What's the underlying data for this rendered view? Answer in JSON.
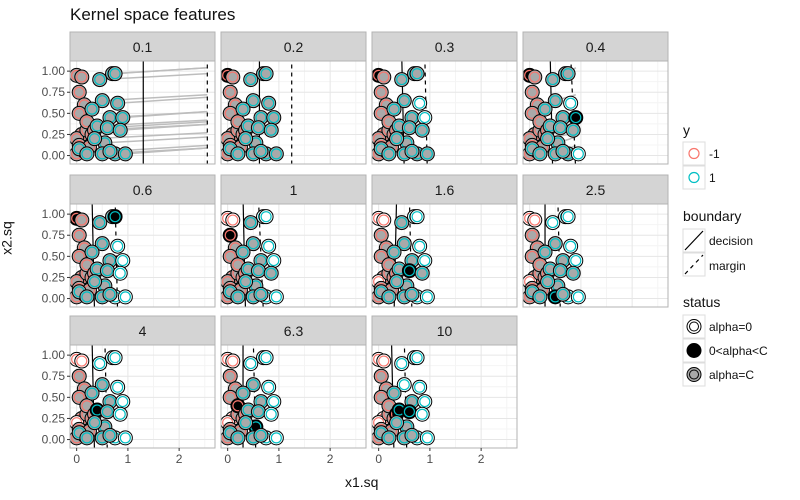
{
  "chart_data": {
    "type": "scatter",
    "title": "Kernel space features",
    "xlabel": "x1.sq",
    "ylabel": "x2.sq",
    "xlim": [
      -0.13,
      2.7
    ],
    "ylim": [
      -0.1,
      1.12
    ],
    "xticks": [
      "0",
      "1",
      "2"
    ],
    "xtick_values": [
      0,
      1,
      2
    ],
    "yticks": [
      "0.00",
      "0.25",
      "0.50",
      "0.75",
      "1.00"
    ],
    "ytick_values": [
      0,
      0.25,
      0.5,
      0.75,
      1
    ],
    "colors": {
      "neg": "#F8766D",
      "pos": "#00BFC4",
      "alphaC": "#a9a9a9",
      "strip": "#d4d4d4"
    },
    "points": [
      [
        0,
        0.95,
        -1
      ],
      [
        0.1,
        0.93,
        -1
      ],
      [
        0.05,
        0.75,
        -1
      ],
      [
        0.15,
        0.6,
        -1
      ],
      [
        0.05,
        0.5,
        -1
      ],
      [
        0.1,
        0.25,
        -1
      ],
      [
        0,
        0.2,
        -1
      ],
      [
        0.05,
        0.12,
        -1
      ],
      [
        0.2,
        0.3,
        -1
      ],
      [
        0.3,
        0.25,
        -1
      ],
      [
        0,
        0.02,
        -1
      ],
      [
        0.15,
        0.05,
        -1
      ],
      [
        0.25,
        0.1,
        -1
      ],
      [
        0.2,
        0.4,
        -1
      ],
      [
        0.35,
        0.3,
        -1
      ],
      [
        0.7,
        0.97,
        1
      ],
      [
        0.75,
        0.97,
        1
      ],
      [
        0.45,
        0.9,
        1
      ],
      [
        0.5,
        0.65,
        1
      ],
      [
        0.8,
        0.62,
        1
      ],
      [
        0.65,
        0.45,
        1
      ],
      [
        0.9,
        0.45,
        1
      ],
      [
        0.4,
        0.35,
        1
      ],
      [
        0.6,
        0.33,
        1
      ],
      [
        0.3,
        0.55,
        1
      ],
      [
        0.55,
        0.15,
        1
      ],
      [
        0.05,
        0.08,
        1
      ],
      [
        0.35,
        0.2,
        1
      ],
      [
        0.5,
        0.02,
        1
      ],
      [
        0.75,
        0.02,
        1
      ],
      [
        0.65,
        0.05,
        1
      ],
      [
        0.95,
        0.02,
        1
      ],
      [
        0.2,
        0.02,
        1
      ],
      [
        0.85,
        0.3,
        1
      ]
    ],
    "panels": [
      {
        "label": "0.1",
        "decision": [
          1.3,
          1.3
        ],
        "margin": [
          2.55,
          2.55
        ],
        "segments": true,
        "free": [],
        "zero": []
      },
      {
        "label": "0.2",
        "decision": [
          0.62,
          0.62
        ],
        "margin": [
          1.25,
          1.25
        ],
        "segments": false,
        "free": [
          0
        ],
        "zero": []
      },
      {
        "label": "0.3",
        "decision": [
          0.5,
          0.45
        ],
        "margin": [
          0.95,
          0.9
        ],
        "segments": false,
        "free": [
          0
        ],
        "zero": [
          19,
          21
        ]
      },
      {
        "label": "0.4",
        "decision": [
          0.45,
          0.4
        ],
        "margin": [
          0.9,
          0.8
        ],
        "segments": true,
        "free": [
          0,
          21
        ],
        "zero": [
          19,
          31
        ]
      },
      {
        "label": "0.6",
        "decision": [
          0.35,
          0.3
        ],
        "margin": [
          0.8,
          0.75
        ],
        "segments": false,
        "free": [
          0,
          16
        ],
        "zero": [
          19,
          21,
          31,
          29,
          33
        ]
      },
      {
        "label": "1",
        "decision": [
          0.35,
          0.3
        ],
        "margin": [
          0.7,
          0.6
        ],
        "segments": false,
        "free": [
          2
        ],
        "zero": [
          15,
          16,
          19,
          21,
          31,
          29,
          0,
          1
        ]
      },
      {
        "label": "1.6",
        "decision": [
          0.3,
          0.35
        ],
        "margin": [
          0.65,
          0.6
        ],
        "segments": false,
        "free": [
          23
        ],
        "zero": [
          15,
          16,
          19,
          21,
          31,
          29,
          0,
          1,
          6
        ]
      },
      {
        "label": "2.5",
        "decision": [
          0.3,
          0.3
        ],
        "margin": [
          0.6,
          0.55
        ],
        "segments": false,
        "free": [
          28
        ],
        "zero": [
          15,
          16,
          19,
          21,
          31,
          29,
          0,
          1,
          6,
          17
        ]
      },
      {
        "label": "4",
        "decision": [
          0.35,
          0.3
        ],
        "margin": [
          0.6,
          0.55
        ],
        "segments": false,
        "free": [
          22
        ],
        "zero": [
          15,
          16,
          19,
          21,
          31,
          29,
          0,
          1,
          6,
          17,
          33
        ]
      },
      {
        "label": "6.3",
        "decision": [
          0.3,
          0.3
        ],
        "margin": [
          0.55,
          0.5
        ],
        "segments": false,
        "free": [
          13,
          25
        ],
        "zero": [
          15,
          16,
          19,
          21,
          31,
          29,
          0,
          1,
          6,
          17,
          33,
          5
        ]
      },
      {
        "label": "10",
        "decision": [
          0.3,
          0.25
        ],
        "margin": [
          0.55,
          0.5
        ],
        "segments": false,
        "free": [
          22,
          14,
          23
        ],
        "zero": [
          15,
          16,
          19,
          21,
          31,
          29,
          0,
          1,
          6,
          17,
          33,
          5,
          18
        ]
      }
    ],
    "legend": {
      "y": {
        "title": "y",
        "items": [
          "-1",
          "1"
        ]
      },
      "boundary": {
        "title": "boundary",
        "items": [
          "decision",
          "margin"
        ]
      },
      "status": {
        "title": "status",
        "items": [
          "alpha=0",
          "0<alpha<C",
          "alpha=C"
        ]
      }
    }
  }
}
